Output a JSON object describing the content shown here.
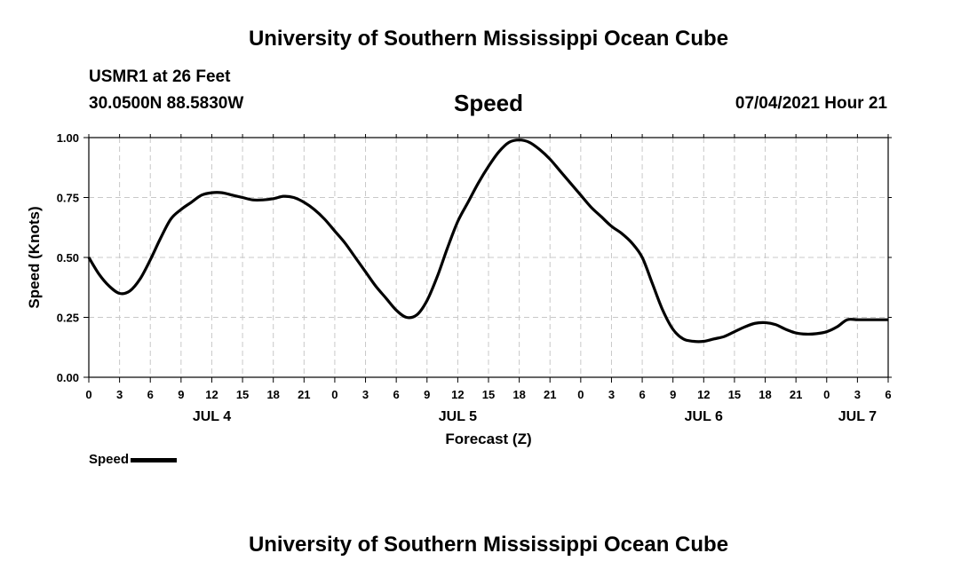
{
  "header": {
    "title_top": "University of Southern Mississippi Ocean Cube",
    "station": "USMR1 at 26 Feet",
    "coords": "30.0500N  88.5830W",
    "chart_title": "Speed",
    "datetime": "07/04/2021 Hour 21"
  },
  "footer": {
    "title_bottom": "University of Southern Mississippi Ocean Cube"
  },
  "legend": {
    "label": "Speed"
  },
  "chart_data": {
    "type": "line",
    "title": "Speed",
    "xlabel": "Forecast (Z)",
    "ylabel": "Speed (Knots)",
    "ylim": [
      0,
      1
    ],
    "xlim": [
      0,
      78
    ],
    "x_unit": "hours from JUL 4 00Z",
    "grid": true,
    "legend_placement": "bottom-left",
    "y_ticks": [
      "0.00",
      "0.25",
      "0.50",
      "0.75",
      "1.00"
    ],
    "x_tick_labels": [
      "0",
      "3",
      "6",
      "9",
      "12",
      "15",
      "18",
      "21",
      "0",
      "3",
      "6",
      "9",
      "12",
      "15",
      "18",
      "21",
      "0",
      "3",
      "6",
      "9",
      "12",
      "15",
      "18",
      "21",
      "0",
      "3",
      "6"
    ],
    "day_labels": [
      {
        "label": "JUL 4",
        "hour": 12
      },
      {
        "label": "JUL 5",
        "hour": 36
      },
      {
        "label": "JUL 6",
        "hour": 60
      },
      {
        "label": "JUL 7",
        "hour": 75
      }
    ],
    "series": [
      {
        "name": "Speed",
        "color": "#000000",
        "x": [
          0,
          1,
          2,
          3,
          4,
          5,
          6,
          7,
          8,
          9,
          10,
          11,
          12,
          13,
          14,
          15,
          16,
          17,
          18,
          19,
          20,
          21,
          22,
          23,
          24,
          25,
          26,
          27,
          28,
          29,
          30,
          31,
          32,
          33,
          34,
          35,
          36,
          37,
          38,
          39,
          40,
          41,
          42,
          43,
          44,
          45,
          46,
          47,
          48,
          49,
          50,
          51,
          52,
          53,
          54,
          55,
          56,
          57,
          58,
          59,
          60,
          61,
          62,
          63,
          64,
          65,
          66,
          67,
          68,
          69,
          70,
          71,
          72,
          73,
          74,
          75,
          76,
          77,
          78
        ],
        "y": [
          0.5,
          0.43,
          0.38,
          0.35,
          0.36,
          0.41,
          0.49,
          0.58,
          0.66,
          0.7,
          0.73,
          0.76,
          0.77,
          0.77,
          0.76,
          0.75,
          0.74,
          0.74,
          0.745,
          0.755,
          0.75,
          0.73,
          0.7,
          0.66,
          0.61,
          0.56,
          0.5,
          0.44,
          0.38,
          0.33,
          0.28,
          0.25,
          0.26,
          0.32,
          0.42,
          0.54,
          0.65,
          0.73,
          0.81,
          0.88,
          0.94,
          0.98,
          0.99,
          0.98,
          0.95,
          0.91,
          0.86,
          0.81,
          0.76,
          0.71,
          0.67,
          0.63,
          0.6,
          0.56,
          0.5,
          0.39,
          0.28,
          0.2,
          0.16,
          0.15,
          0.15,
          0.16,
          0.17,
          0.19,
          0.21,
          0.225,
          0.228,
          0.22,
          0.2,
          0.185,
          0.18,
          0.182,
          0.19,
          0.21,
          0.24,
          0.24,
          0.24,
          0.24,
          0.24
        ]
      }
    ]
  }
}
